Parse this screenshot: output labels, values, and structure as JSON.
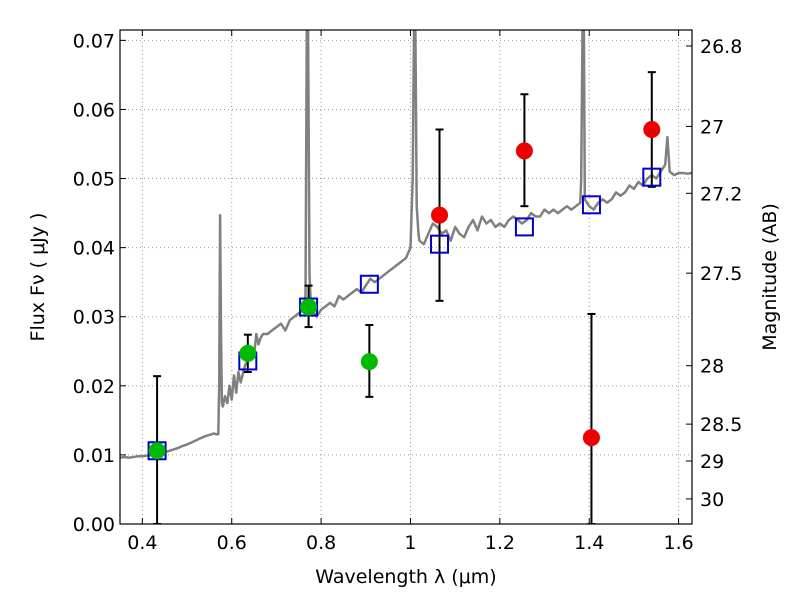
{
  "chart_data": {
    "type": "scatter",
    "title": "",
    "xlabel": "Wavelength  λ (μm)",
    "ylabel": "Flux  Fν  ( μJy )",
    "y2label": "Magnitude (AB)",
    "xlim": [
      0.35,
      1.63
    ],
    "ylim": [
      0.0,
      0.0715
    ],
    "grid": true,
    "legend": "none",
    "x_ticks": [
      0.4,
      0.6,
      0.8,
      1.0,
      1.2,
      1.4,
      1.6
    ],
    "x_tick_labels": [
      "0.4",
      "0.6",
      "0.8",
      "1",
      "1.2",
      "1.4",
      "1.6"
    ],
    "y_ticks": [
      0.0,
      0.01,
      0.02,
      0.03,
      0.04,
      0.05,
      0.06,
      0.07
    ],
    "y_tick_labels": [
      "0.00",
      "0.01",
      "0.02",
      "0.03",
      "0.04",
      "0.05",
      "0.06",
      "0.07"
    ],
    "y2_ticks": [
      {
        "value": 26.8,
        "label": "26.8"
      },
      {
        "value": 27.0,
        "label": "27"
      },
      {
        "value": 27.2,
        "label": "27.2"
      },
      {
        "value": 27.5,
        "label": "27.5"
      },
      {
        "value": 28.0,
        "label": "28"
      },
      {
        "value": 28.5,
        "label": "28.5"
      },
      {
        "value": 29.0,
        "label": "29"
      },
      {
        "value": 30.0,
        "label": "30"
      }
    ],
    "colors": {
      "spectrum": "#808080",
      "green_points": "#00bb00",
      "red_points": "#ee0000",
      "model_squares": "#0000cc",
      "errorbar": "#000000",
      "grid": "#999999"
    },
    "series": [
      {
        "type": "line",
        "x": [
          0.35,
          0.36,
          0.37,
          0.38,
          0.39,
          0.4,
          0.41,
          0.42,
          0.43,
          0.44,
          0.45,
          0.46,
          0.47,
          0.48,
          0.49,
          0.5,
          0.51,
          0.52,
          0.53,
          0.54,
          0.55,
          0.56,
          0.565,
          0.57,
          0.572,
          0.574,
          0.576,
          0.578,
          0.58,
          0.585,
          0.59,
          0.595,
          0.6,
          0.605,
          0.61,
          0.615,
          0.62,
          0.63,
          0.64,
          0.65,
          0.655,
          0.66,
          0.665,
          0.67,
          0.68,
          0.69,
          0.7,
          0.71,
          0.72,
          0.73,
          0.74,
          0.75,
          0.76,
          0.765,
          0.768,
          0.771,
          0.774,
          0.777,
          0.78,
          0.79,
          0.8,
          0.81,
          0.82,
          0.83,
          0.84,
          0.85,
          0.86,
          0.87,
          0.88,
          0.89,
          0.9,
          0.91,
          0.92,
          0.93,
          0.94,
          0.95,
          0.96,
          0.97,
          0.98,
          0.99,
          1.0,
          1.005,
          1.008,
          1.011,
          1.014,
          1.018,
          1.02,
          1.03,
          1.04,
          1.05,
          1.06,
          1.07,
          1.08,
          1.09,
          1.1,
          1.11,
          1.12,
          1.13,
          1.14,
          1.15,
          1.16,
          1.17,
          1.18,
          1.19,
          1.2,
          1.21,
          1.22,
          1.23,
          1.24,
          1.25,
          1.26,
          1.27,
          1.28,
          1.29,
          1.3,
          1.31,
          1.32,
          1.33,
          1.34,
          1.35,
          1.36,
          1.37,
          1.38,
          1.382,
          1.385,
          1.388,
          1.39,
          1.4,
          1.41,
          1.42,
          1.43,
          1.44,
          1.45,
          1.46,
          1.47,
          1.48,
          1.49,
          1.5,
          1.51,
          1.52,
          1.53,
          1.54,
          1.55,
          1.56,
          1.57,
          1.575,
          1.58,
          1.59,
          1.6,
          1.61,
          1.62,
          1.63
        ],
        "y": [
          0.0096,
          0.0097,
          0.0096,
          0.0097,
          0.0098,
          0.0098,
          0.0099,
          0.01,
          0.0101,
          0.0102,
          0.0104,
          0.0106,
          0.0108,
          0.011,
          0.0113,
          0.0115,
          0.0118,
          0.0121,
          0.0124,
          0.0127,
          0.0129,
          0.0131,
          0.013,
          0.013,
          0.02,
          0.0447,
          0.028,
          0.0175,
          0.017,
          0.0185,
          0.0175,
          0.02,
          0.018,
          0.0215,
          0.019,
          0.022,
          0.0205,
          0.023,
          0.024,
          0.0245,
          0.0275,
          0.026,
          0.027,
          0.0275,
          0.0275,
          0.028,
          0.0285,
          0.029,
          0.028,
          0.0295,
          0.03,
          0.0305,
          0.031,
          0.033,
          0.0715,
          0.0715,
          0.036,
          0.032,
          0.031,
          0.03,
          0.031,
          0.0315,
          0.032,
          0.0315,
          0.033,
          0.0325,
          0.033,
          0.0335,
          0.034,
          0.0335,
          0.0345,
          0.0355,
          0.035,
          0.0355,
          0.036,
          0.0365,
          0.037,
          0.0375,
          0.038,
          0.0385,
          0.04,
          0.05,
          0.0715,
          0.0715,
          0.046,
          0.042,
          0.041,
          0.0405,
          0.042,
          0.0435,
          0.043,
          0.042,
          0.0425,
          0.041,
          0.043,
          0.042,
          0.0415,
          0.043,
          0.044,
          0.0425,
          0.0445,
          0.0435,
          0.044,
          0.043,
          0.0435,
          0.043,
          0.044,
          0.0445,
          0.044,
          0.0435,
          0.044,
          0.045,
          0.0445,
          0.0445,
          0.0455,
          0.045,
          0.0455,
          0.045,
          0.0455,
          0.046,
          0.0455,
          0.046,
          0.0465,
          0.05,
          0.0715,
          0.0715,
          0.047,
          0.046,
          0.0455,
          0.0465,
          0.047,
          0.0465,
          0.047,
          0.048,
          0.0475,
          0.048,
          0.049,
          0.0485,
          0.0495,
          0.049,
          0.05,
          0.0505,
          0.05,
          0.051,
          0.052,
          0.056,
          0.051,
          0.0505,
          0.0508,
          0.0508,
          0.0507,
          0.0508
        ]
      },
      {
        "type": "scatter",
        "name": "",
        "marker": "circle",
        "color": "#00bb00",
        "x": [
          0.433,
          0.636,
          0.772,
          0.908
        ],
        "y": [
          0.0106,
          0.0247,
          0.0314,
          0.0235
        ],
        "err_low": [
          0.0106,
          0.0027,
          0.0029,
          0.0051
        ],
        "err_high": [
          0.0108,
          0.0027,
          0.0031,
          0.0053
        ]
      },
      {
        "type": "scatter",
        "name": "",
        "marker": "circle",
        "color": "#ee0000",
        "x": [
          1.065,
          1.255,
          1.405,
          1.54
        ],
        "y": [
          0.0447,
          0.054,
          0.0125,
          0.0571
        ],
        "err_low": [
          0.0124,
          0.008,
          0.0125,
          0.0083
        ],
        "err_high": [
          0.0124,
          0.0082,
          0.0179,
          0.0083
        ]
      },
      {
        "type": "scatter",
        "name": "",
        "marker": "square",
        "color": "#0000cc",
        "x": [
          0.433,
          0.636,
          0.772,
          0.908,
          1.065,
          1.255,
          1.405,
          1.54
        ],
        "y": [
          0.0106,
          0.0236,
          0.0314,
          0.0347,
          0.0405,
          0.043,
          0.0462,
          0.0502
        ]
      }
    ]
  }
}
